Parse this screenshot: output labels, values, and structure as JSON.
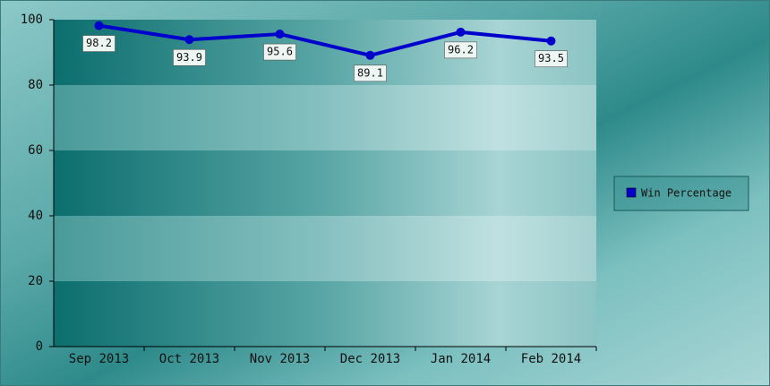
{
  "chart_data": {
    "type": "line",
    "categories": [
      "Sep 2013",
      "Oct 2013",
      "Nov 2013",
      "Dec 2013",
      "Jan 2014",
      "Feb 2014"
    ],
    "series": [
      {
        "name": "Win Percentage",
        "color": "#0000cc",
        "values": [
          98.2,
          93.9,
          95.6,
          89.1,
          96.2,
          93.5
        ]
      }
    ],
    "ylim": [
      0,
      100
    ],
    "yticks": [
      0,
      20,
      40,
      60,
      80,
      100
    ],
    "legend": "right"
  }
}
